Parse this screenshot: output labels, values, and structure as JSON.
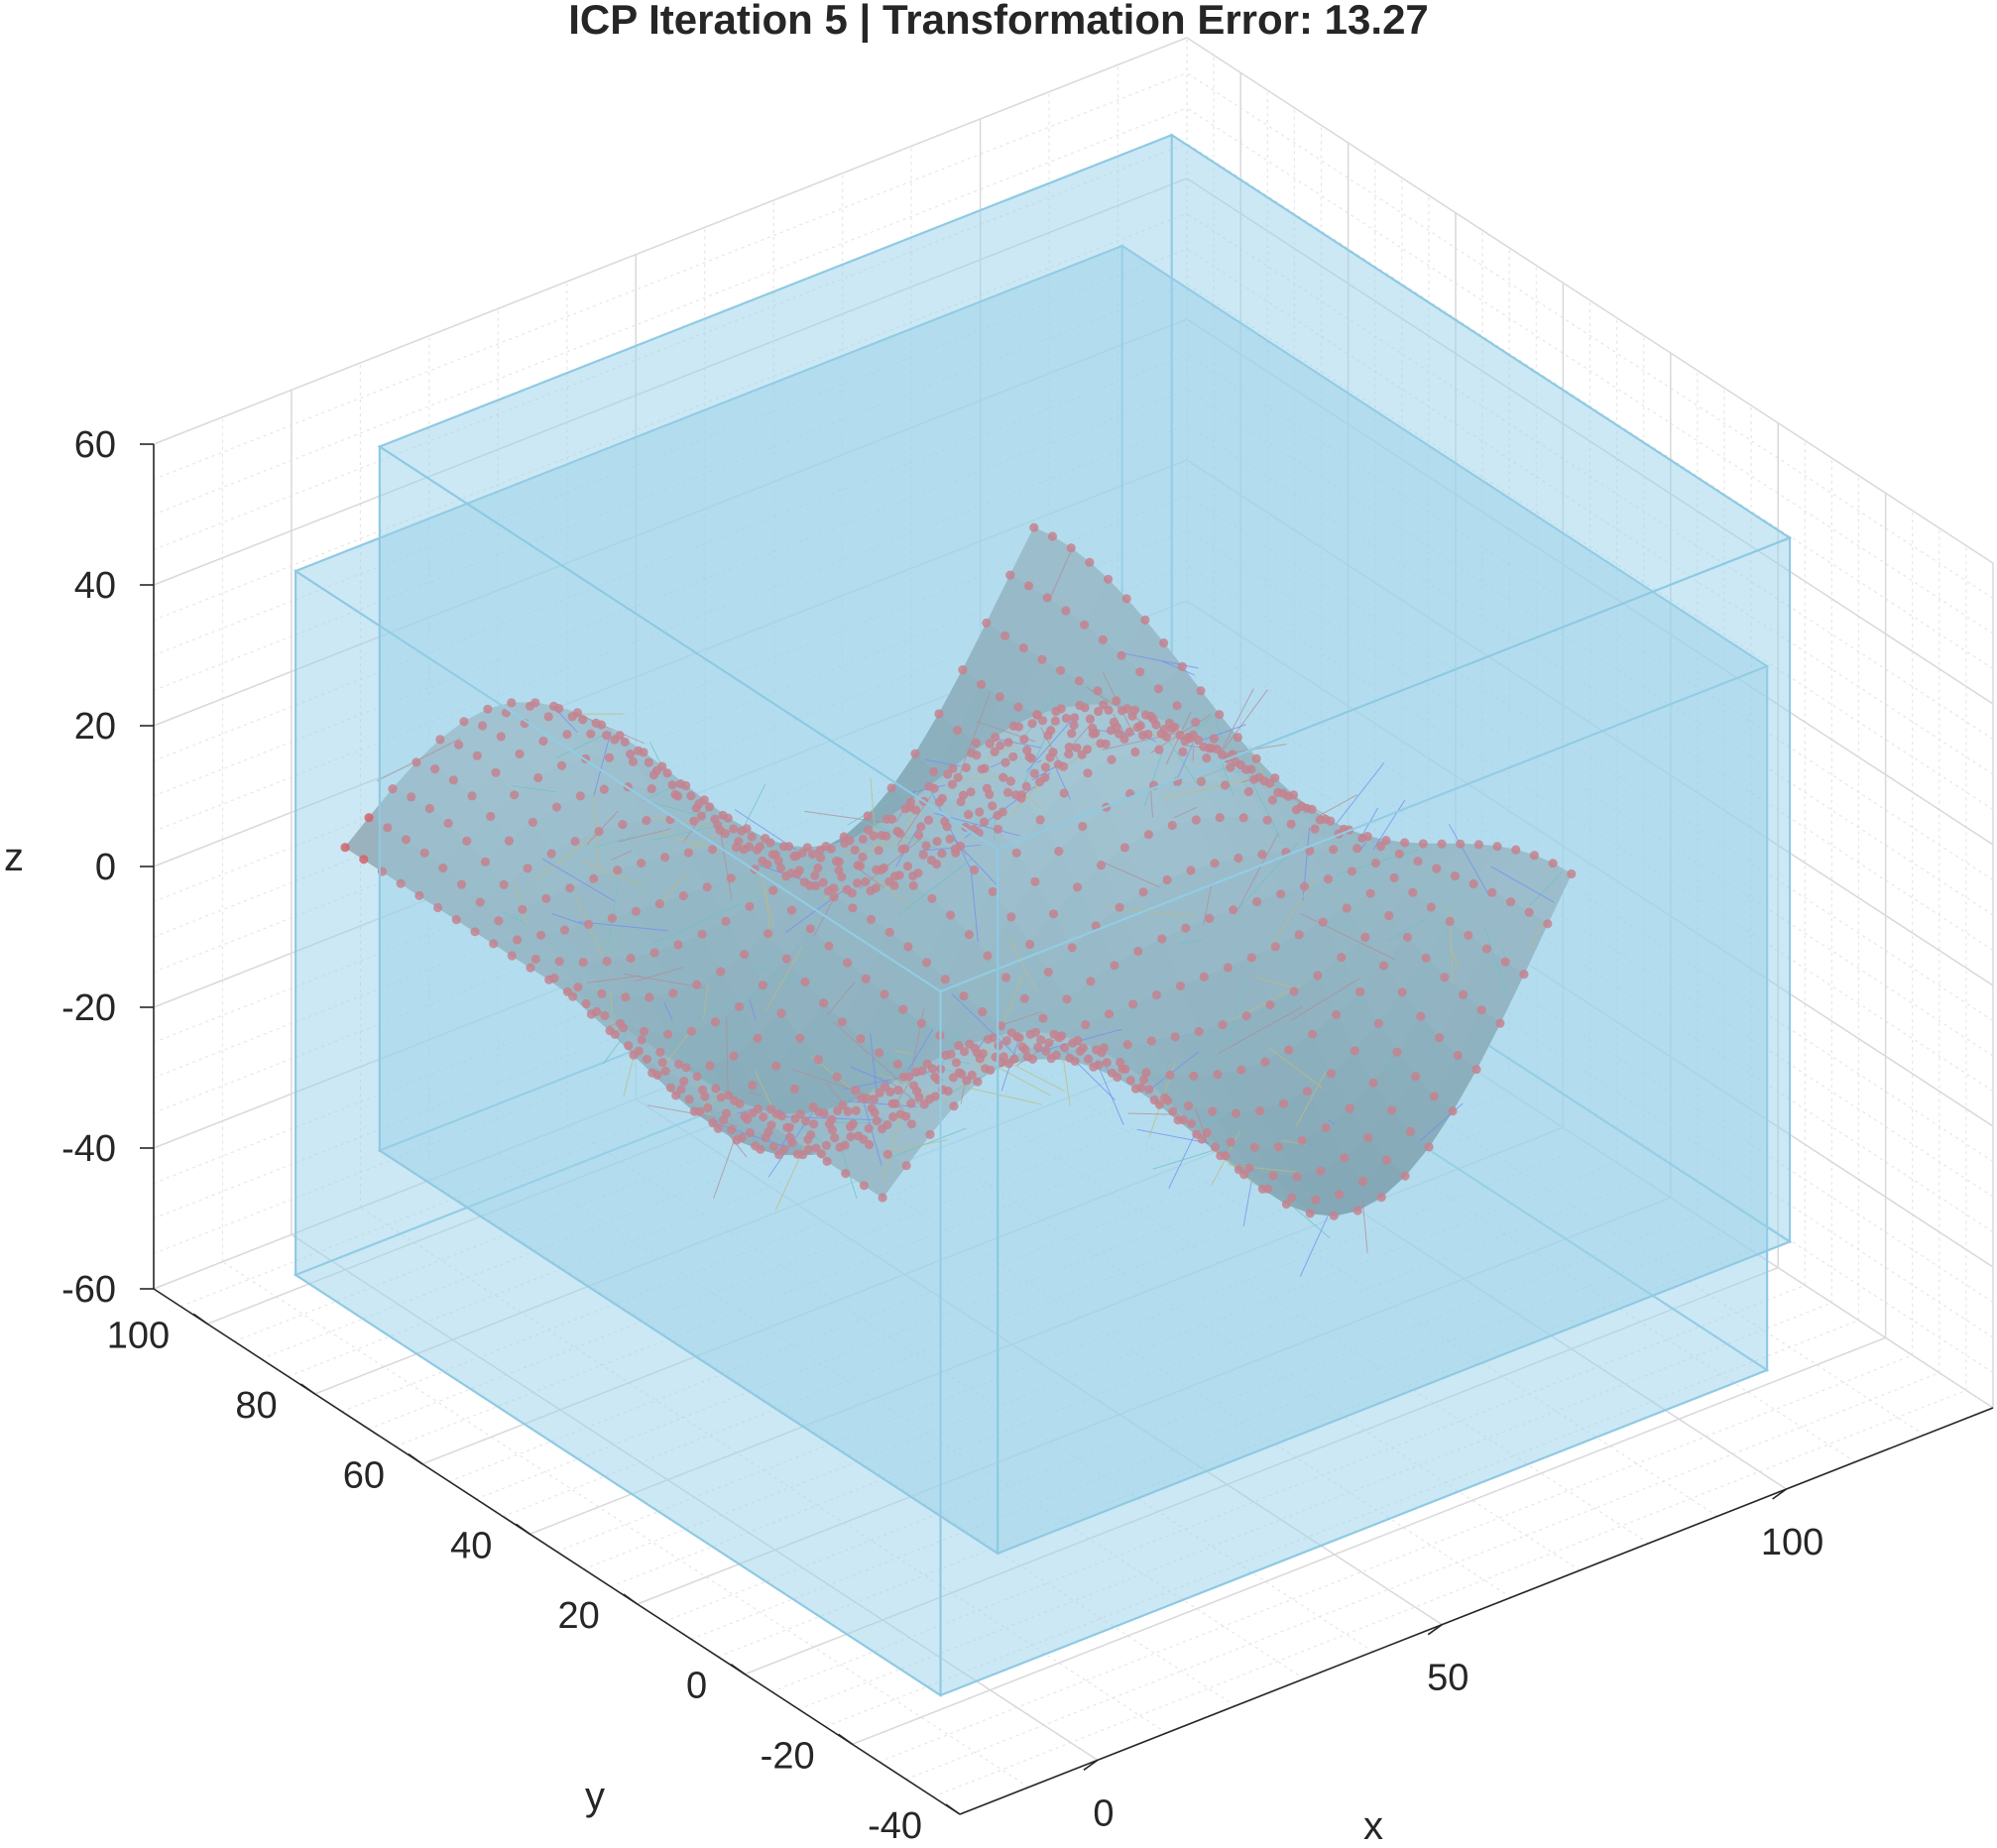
{
  "chart_data": {
    "type": "surface3d",
    "title": "ICP Iteration 5 | Transformation Error: 13.27",
    "xlabel": "x",
    "ylabel": "y",
    "zlabel": "z",
    "xlim": [
      -20,
      130
    ],
    "ylim": [
      -40,
      110
    ],
    "zlim": [
      -60,
      60
    ],
    "x_ticks": [
      "0",
      "50",
      "100"
    ],
    "y_ticks": [
      "-40",
      "-20",
      "0",
      "20",
      "40",
      "60",
      "80",
      "100"
    ],
    "z_ticks": [
      "-60",
      "-40",
      "-20",
      "0",
      "20",
      "40",
      "60"
    ],
    "grid": true,
    "minor_grid": true,
    "bounding_boxes": [
      {
        "x": [
          -15,
          105
        ],
        "y": [
          -30,
          90
        ],
        "z": [
          -50,
          50
        ]
      },
      {
        "x": [
          5,
          120
        ],
        "y": [
          -15,
          100
        ],
        "z": [
          -45,
          55
        ]
      }
    ],
    "surface": {
      "x_range": [
        0,
        100
      ],
      "y_range": [
        0,
        100
      ],
      "description_function": "z = 20*sin(x/15)*cos(y/15) + 15*exp(-((x-50)^2+(y-50)^2)/500) + 0.004*(x-50)^2 - 10",
      "color": "#8a9aa3"
    },
    "points_series": {
      "name": "",
      "count_per_axis": 30,
      "color": "#e8383d"
    },
    "correspondence_lines": {
      "color_mix": [
        "#4c4cff",
        "#44b0a0",
        "#d9a520",
        "#c24c4c"
      ]
    },
    "colors": {
      "box_fill": "#9dd3ea",
      "box_edge": "#8ec9e3",
      "surface_light": "#c5d2d8",
      "surface_dark": "#566a73",
      "points": "#e8383d",
      "grid": "#d9d9d9"
    }
  }
}
